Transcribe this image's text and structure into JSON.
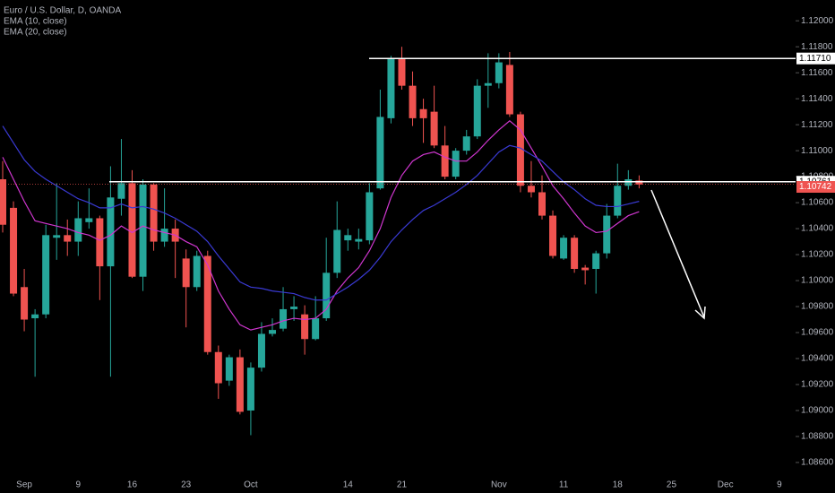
{
  "chart_data": {
    "type": "candlestick",
    "title": "Euro / U.S. Dollar, D, OANDA",
    "categories": [
      null,
      null,
      "Sep",
      null,
      null,
      null,
      null,
      "9",
      null,
      null,
      null,
      null,
      "16",
      null,
      null,
      null,
      null,
      "23",
      null,
      null,
      null,
      null,
      null,
      "Oct",
      null,
      null,
      null,
      null,
      null,
      null,
      null,
      null,
      "14",
      null,
      null,
      null,
      null,
      "21",
      null,
      null,
      null,
      null,
      null,
      null,
      null,
      null,
      "Nov",
      null,
      null,
      null,
      null,
      null,
      "11",
      null,
      null,
      null,
      null,
      "18",
      null,
      null,
      null,
      null,
      "25",
      null,
      null,
      null,
      null,
      "Dec",
      null,
      null,
      null,
      null,
      "9",
      null
    ],
    "open": [
      1.1078,
      1.1056,
      1.0995,
      1.0971,
      1.0974,
      1.1033,
      1.1035,
      1.103,
      1.1045,
      1.1048,
      1.1011,
      1.1063,
      1.1075,
      1.1003,
      1.1074,
      1.103,
      1.104,
      1.1017,
      1.0995,
      1.1019,
      1.0945,
      1.0923,
      1.0941,
      1.09,
      1.0933,
      1.0959,
      1.0963,
      1.0978,
      1.0974,
      1.0955,
      1.0971,
      1.1006,
      1.1031,
      1.103,
      1.1031,
      1.1071,
      1.1125,
      1.1171,
      1.115,
      1.1132,
      1.113,
      1.1104,
      1.108,
      1.11,
      1.1111,
      1.115,
      1.1152,
      1.1166,
      1.1128,
      1.1073,
      1.1068,
      1.105,
      1.1017,
      1.1033,
      1.101,
      1.1009,
      1.1021,
      1.105,
      1.1073,
      1.1077,
      null,
      null,
      null,
      null,
      null,
      null,
      null,
      null,
      null,
      null,
      null,
      null,
      null,
      null
    ],
    "high": [
      1.1092,
      1.1061,
      1.1009,
      1.0978,
      1.1043,
      1.1075,
      1.1047,
      1.1061,
      1.1071,
      1.105,
      1.1088,
      1.1109,
      1.1085,
      1.1078,
      1.1075,
      1.1071,
      1.1047,
      1.1024,
      1.1023,
      1.1023,
      1.095,
      1.0943,
      1.0947,
      1.0937,
      1.0968,
      1.0971,
      1.0995,
      1.0988,
      1.0981,
      1.0988,
      1.1033,
      1.1061,
      1.104,
      1.104,
      1.1075,
      1.1147,
      1.1173,
      1.118,
      1.1161,
      1.114,
      1.115,
      1.1119,
      1.1102,
      1.1116,
      1.1155,
      1.1175,
      1.1175,
      1.1176,
      1.113,
      1.1092,
      1.1081,
      1.1054,
      1.1035,
      1.1035,
      1.1012,
      1.1023,
      1.1059,
      1.109,
      1.1085,
      1.1081,
      null,
      null,
      null,
      null,
      null,
      null,
      null,
      null,
      null,
      null,
      null,
      null,
      null,
      null
    ],
    "low": [
      1.1037,
      1.0988,
      1.0961,
      1.0926,
      1.0971,
      1.1016,
      1.1019,
      1.1019,
      1.104,
      1.0985,
      1.0926,
      1.105,
      1.1002,
      1.0992,
      1.1023,
      1.1026,
      1.1002,
      1.0964,
      1.0992,
      1.0943,
      1.0909,
      1.0919,
      1.0897,
      1.0881,
      1.093,
      1.0957,
      1.0961,
      1.0969,
      1.0943,
      1.0954,
      1.0969,
      1.1002,
      1.1023,
      1.1024,
      1.1028,
      1.107,
      1.1121,
      1.1147,
      1.1119,
      1.1106,
      1.1102,
      1.1078,
      1.1078,
      1.1097,
      1.1109,
      1.1133,
      1.1148,
      1.1126,
      1.1068,
      1.1064,
      1.1047,
      1.1017,
      1.1016,
      1.1006,
      1.0997,
      1.099,
      1.1017,
      1.1048,
      1.107,
      1.1071,
      null,
      null,
      null,
      null,
      null,
      null,
      null,
      null,
      null,
      null,
      null,
      null,
      null,
      null
    ],
    "close": [
      1.1043,
      1.099,
      1.097,
      1.0974,
      1.1035,
      1.1035,
      1.103,
      1.1048,
      1.1048,
      1.1011,
      1.1064,
      1.1075,
      1.1003,
      1.1074,
      1.103,
      1.104,
      1.103,
      1.0995,
      1.1019,
      1.0945,
      1.0921,
      1.0941,
      1.0899,
      1.0933,
      1.0959,
      1.0962,
      1.0978,
      1.098,
      1.0955,
      1.0971,
      1.1006,
      1.1039,
      1.1035,
      1.1032,
      1.1068,
      1.1126,
      1.1171,
      1.115,
      1.1125,
      1.1125,
      1.1104,
      1.108,
      1.11,
      1.1111,
      1.115,
      1.1152,
      1.1168,
      1.1128,
      1.1073,
      1.1068,
      1.105,
      1.1019,
      1.1033,
      1.1009,
      1.1008,
      1.1021,
      1.105,
      1.1073,
      1.1078,
      1.1074,
      null,
      null,
      null,
      null,
      null,
      null,
      null,
      null,
      null,
      null,
      null,
      null,
      null,
      null
    ],
    "up_color": "#26a69a",
    "down_color": "#ef5350",
    "series": [
      {
        "name": "EMA (10, close)",
        "color": "#cf36cf",
        "values": [
          1.1095,
          1.1078,
          1.1061,
          1.1046,
          1.1044,
          1.1042,
          1.104,
          1.1037,
          1.1035,
          1.1031,
          1.1035,
          1.1042,
          1.1037,
          1.1042,
          1.1039,
          1.1037,
          1.1035,
          1.103,
          1.1026,
          1.1012,
          1.0992,
          1.0978,
          1.0966,
          1.0962,
          1.0964,
          1.0966,
          1.0969,
          1.0971,
          1.097,
          1.0971,
          1.0978,
          1.0992,
          1.1002,
          1.101,
          1.1023,
          1.104,
          1.1064,
          1.1081,
          1.1092,
          1.1097,
          1.1099,
          1.1095,
          1.1092,
          1.1092,
          1.1099,
          1.1108,
          1.1116,
          1.1123,
          1.1116,
          1.1102,
          1.1088,
          1.1073,
          1.1063,
          1.1052,
          1.1042,
          1.1037,
          1.1038,
          1.1044,
          1.105,
          1.1053,
          null,
          null,
          null,
          null,
          null,
          null,
          null,
          null,
          null,
          null,
          null,
          null,
          null,
          null
        ]
      },
      {
        "name": "EMA (20, close)",
        "color": "#3a3ad4",
        "values": [
          1.1119,
          1.1106,
          1.1093,
          1.1084,
          1.1078,
          1.1073,
          1.1068,
          1.1063,
          1.106,
          1.1056,
          1.1056,
          1.1059,
          1.1056,
          1.1057,
          1.1055,
          1.1052,
          1.1048,
          1.1043,
          1.1038,
          1.103,
          1.1019,
          1.1009,
          1.0999,
          1.0995,
          1.0994,
          1.0992,
          1.0991,
          1.099,
          1.0987,
          1.0985,
          1.0985,
          1.099,
          1.0995,
          1.1001,
          1.1008,
          1.1018,
          1.103,
          1.1039,
          1.1047,
          1.1054,
          1.1058,
          1.1063,
          1.1068,
          1.1074,
          1.1081,
          1.109,
          1.1099,
          1.1104,
          1.1102,
          1.1097,
          1.1092,
          1.1084,
          1.1076,
          1.107,
          1.1063,
          1.1058,
          1.1057,
          1.1057,
          1.1059,
          1.1061,
          null,
          null,
          null,
          null,
          null,
          null,
          null,
          null,
          null,
          null,
          null,
          null,
          null,
          null
        ]
      }
    ],
    "ylim": [
      1.08503,
      1.1216
    ],
    "yticks": [
      {
        "value": 1.12,
        "label": "1.12000"
      },
      {
        "value": 1.118,
        "label": "1.11800"
      },
      {
        "value": 1.116,
        "label": "1.11600"
      },
      {
        "value": 1.114,
        "label": "1.11400"
      },
      {
        "value": 1.112,
        "label": "1.11200"
      },
      {
        "value": 1.11,
        "label": "1.11000"
      },
      {
        "value": 1.108,
        "label": "1.10800"
      },
      {
        "value": 1.106,
        "label": "1.10600"
      },
      {
        "value": 1.104,
        "label": "1.10400"
      },
      {
        "value": 1.102,
        "label": "1.10200"
      },
      {
        "value": 1.1,
        "label": "1.10000"
      },
      {
        "value": 1.098,
        "label": "1.09800"
      },
      {
        "value": 1.096,
        "label": "1.09600"
      },
      {
        "value": 1.094,
        "label": "1.09400"
      },
      {
        "value": 1.092,
        "label": "1.09200"
      },
      {
        "value": 1.09,
        "label": "1.09000"
      },
      {
        "value": 1.088,
        "label": "1.08800"
      },
      {
        "value": 1.086,
        "label": "1.08600"
      }
    ],
    "price_lines": [
      {
        "value": 1.1171,
        "label": "1.11710"
      },
      {
        "value": 1.10761,
        "label": "1.10761"
      }
    ],
    "last_price": {
      "value": 1.10742,
      "label": "1.10742"
    }
  }
}
